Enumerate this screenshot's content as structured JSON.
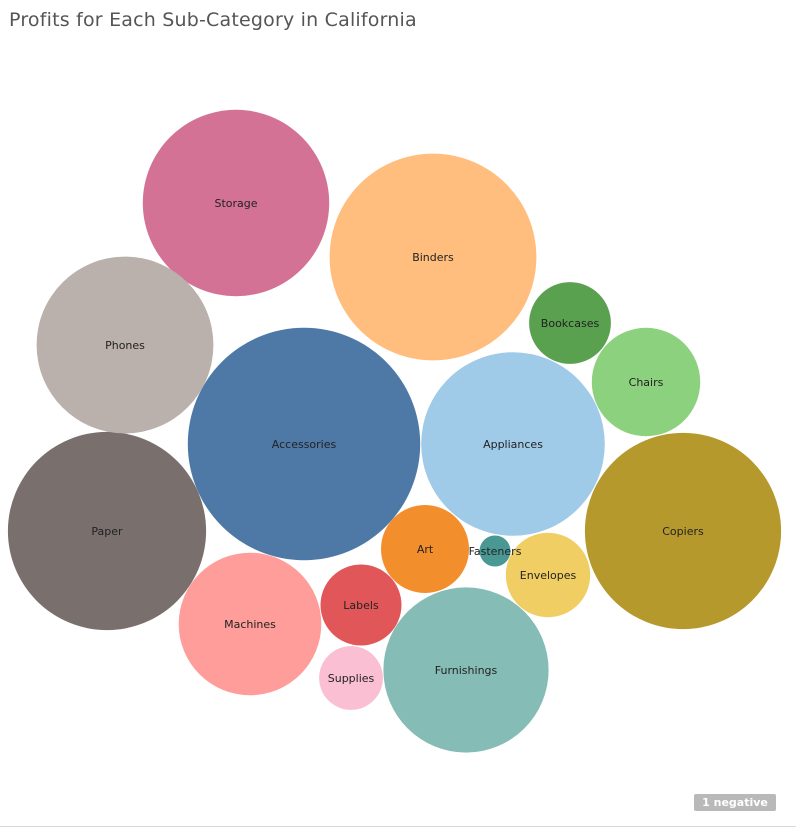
{
  "chart_data": {
    "type": "bubble",
    "title": "Profits for Each Sub-Category in California",
    "size_measure": "Profit",
    "note": "1 negative",
    "bubbles": [
      {
        "label": "Accessories",
        "value": 10100,
        "color": "#4e79a7"
      },
      {
        "label": "Binders",
        "value": 8000,
        "color": "#ffbe7d"
      },
      {
        "label": "Copiers",
        "value": 7200,
        "color": "#b6992d"
      },
      {
        "label": "Paper",
        "value": 7350,
        "color": "#79706e"
      },
      {
        "label": "Storage",
        "value": 6500,
        "color": "#d37295"
      },
      {
        "label": "Appliances",
        "value": 6300,
        "color": "#a0cbe8"
      },
      {
        "label": "Phones",
        "value": 5850,
        "color": "#bab0ac"
      },
      {
        "label": "Furnishings",
        "value": 5100,
        "color": "#86bcb6"
      },
      {
        "label": "Machines",
        "value": 3800,
        "color": "#ff9d9a"
      },
      {
        "label": "Chairs",
        "value": 2200,
        "color": "#8cd17d"
      },
      {
        "label": "Bookcases",
        "value": 1250,
        "color": "#59a14f"
      },
      {
        "label": "Art",
        "value": 1450,
        "color": "#f28e2b"
      },
      {
        "label": "Envelopes",
        "value": 1330,
        "color": "#f1ce63"
      },
      {
        "label": "Labels",
        "value": 1230,
        "color": "#e15759"
      },
      {
        "label": "Supplies",
        "value": 760,
        "color": "#fabfd2"
      },
      {
        "label": "Fasteners",
        "value": 180,
        "color": "#499894"
      }
    ]
  }
}
